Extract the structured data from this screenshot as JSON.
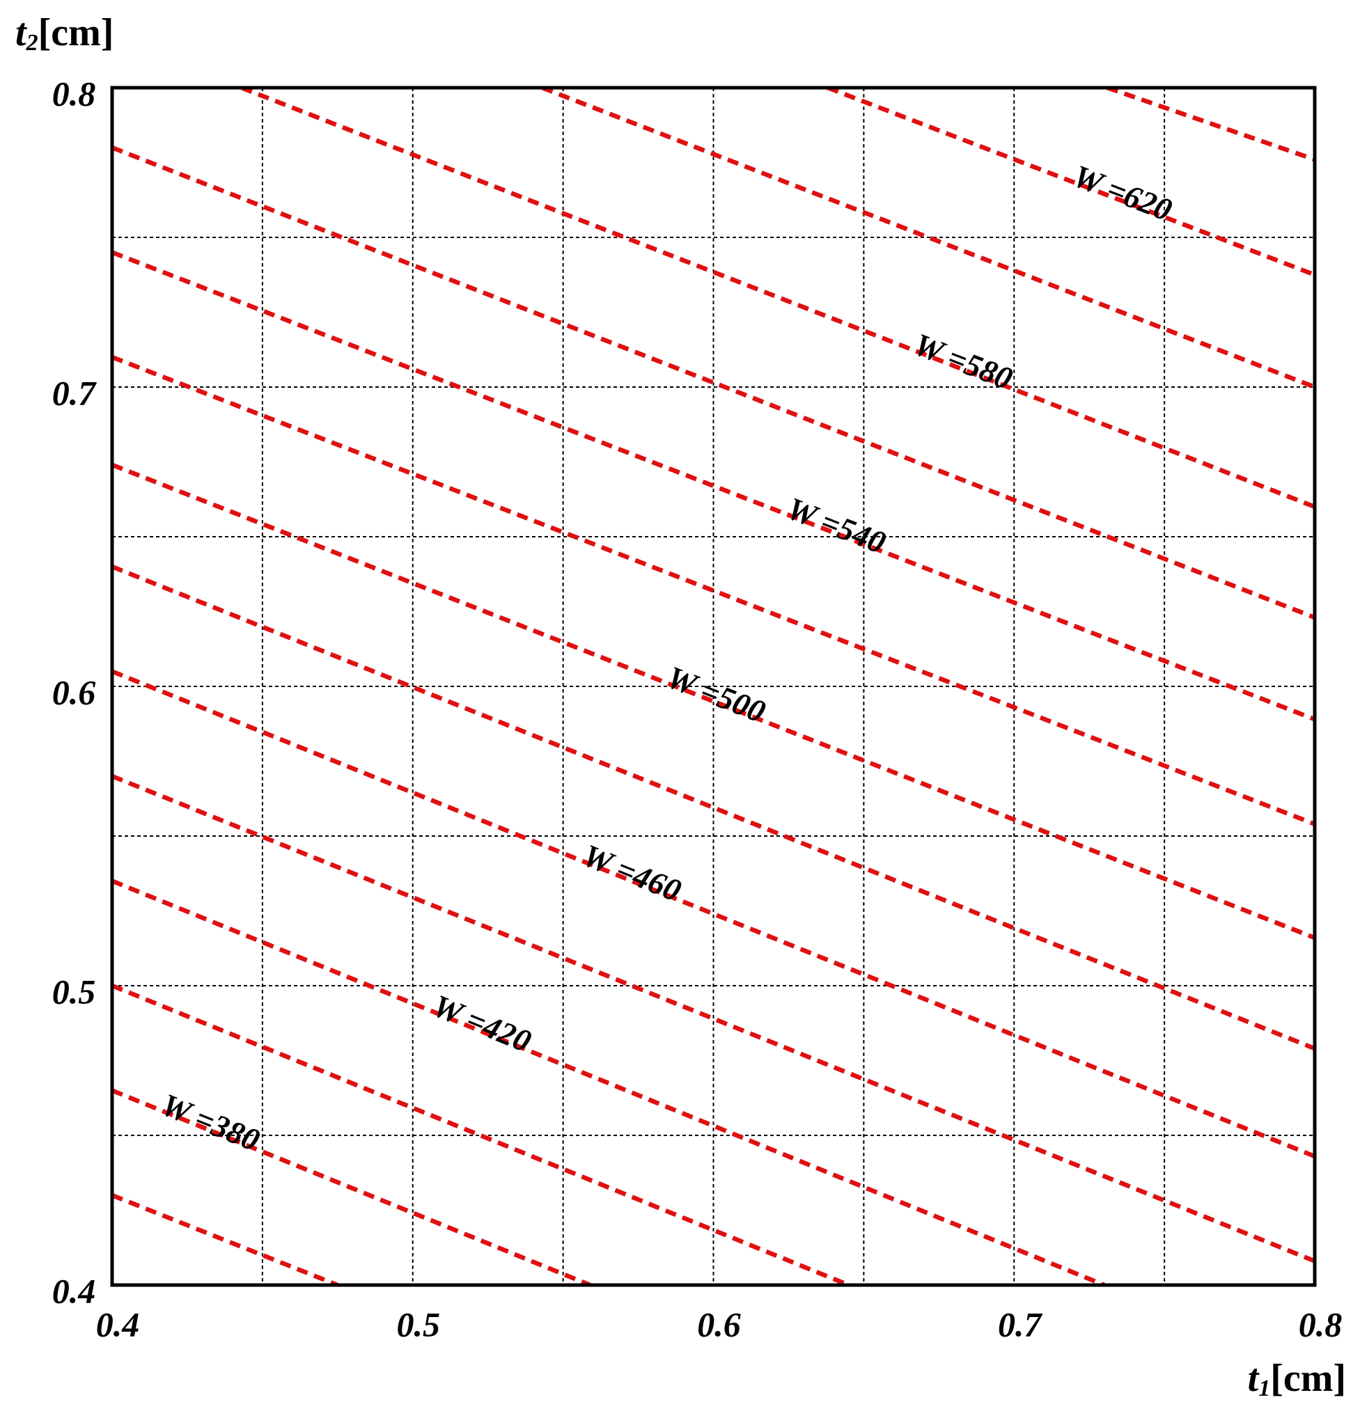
{
  "chart_data": {
    "type": "contour",
    "x_label": {
      "symbol": "t",
      "subscript": "1",
      "unit": "[cm]"
    },
    "y_label": {
      "symbol": "t",
      "subscript": "2",
      "unit": "[cm]"
    },
    "xlim": [
      0.4,
      0.8
    ],
    "ylim": [
      0.4,
      0.8
    ],
    "xticks": [
      0.4,
      0.5,
      0.6,
      0.7,
      0.8
    ],
    "yticks": [
      0.4,
      0.5,
      0.6,
      0.7,
      0.8
    ],
    "xminorticks": [
      0.45,
      0.55,
      0.65,
      0.75
    ],
    "yminorticks": [
      0.45,
      0.55,
      0.65,
      0.75
    ],
    "grid": true,
    "color": "#e01010",
    "series": [
      {
        "x": [
          0.4,
          0.475
        ],
        "values": [
          0.43,
          0.4
        ]
      },
      {
        "name": "W =380",
        "x": [
          0.4,
          0.559
        ],
        "values": [
          0.465,
          0.4
        ]
      },
      {
        "x": [
          0.4,
          0.645
        ],
        "values": [
          0.5,
          0.4
        ]
      },
      {
        "name": "W =420",
        "x": [
          0.4,
          0.73
        ],
        "values": [
          0.535,
          0.4
        ]
      },
      {
        "x": [
          0.4,
          0.8
        ],
        "values": [
          0.57,
          0.408
        ]
      },
      {
        "name": "W =460",
        "x": [
          0.4,
          0.8
        ],
        "values": [
          0.605,
          0.443
        ]
      },
      {
        "x": [
          0.4,
          0.8
        ],
        "values": [
          0.64,
          0.479
        ]
      },
      {
        "name": "W =500",
        "x": [
          0.4,
          0.8
        ],
        "values": [
          0.674,
          0.516
        ]
      },
      {
        "x": [
          0.4,
          0.8
        ],
        "values": [
          0.71,
          0.554
        ]
      },
      {
        "name": "W =540",
        "x": [
          0.4,
          0.8
        ],
        "values": [
          0.745,
          0.589
        ]
      },
      {
        "x": [
          0.4,
          0.8
        ],
        "values": [
          0.78,
          0.623
        ]
      },
      {
        "name": "W =580",
        "x": [
          0.443,
          0.8
        ],
        "values": [
          0.8,
          0.66
        ]
      },
      {
        "x": [
          0.543,
          0.8
        ],
        "values": [
          0.8,
          0.7
        ]
      },
      {
        "name": "W =620",
        "x": [
          0.638,
          0.8
        ],
        "values": [
          0.8,
          0.7375
        ]
      },
      {
        "x": [
          0.731,
          0.8
        ],
        "values": [
          0.8,
          0.776
        ]
      }
    ]
  }
}
